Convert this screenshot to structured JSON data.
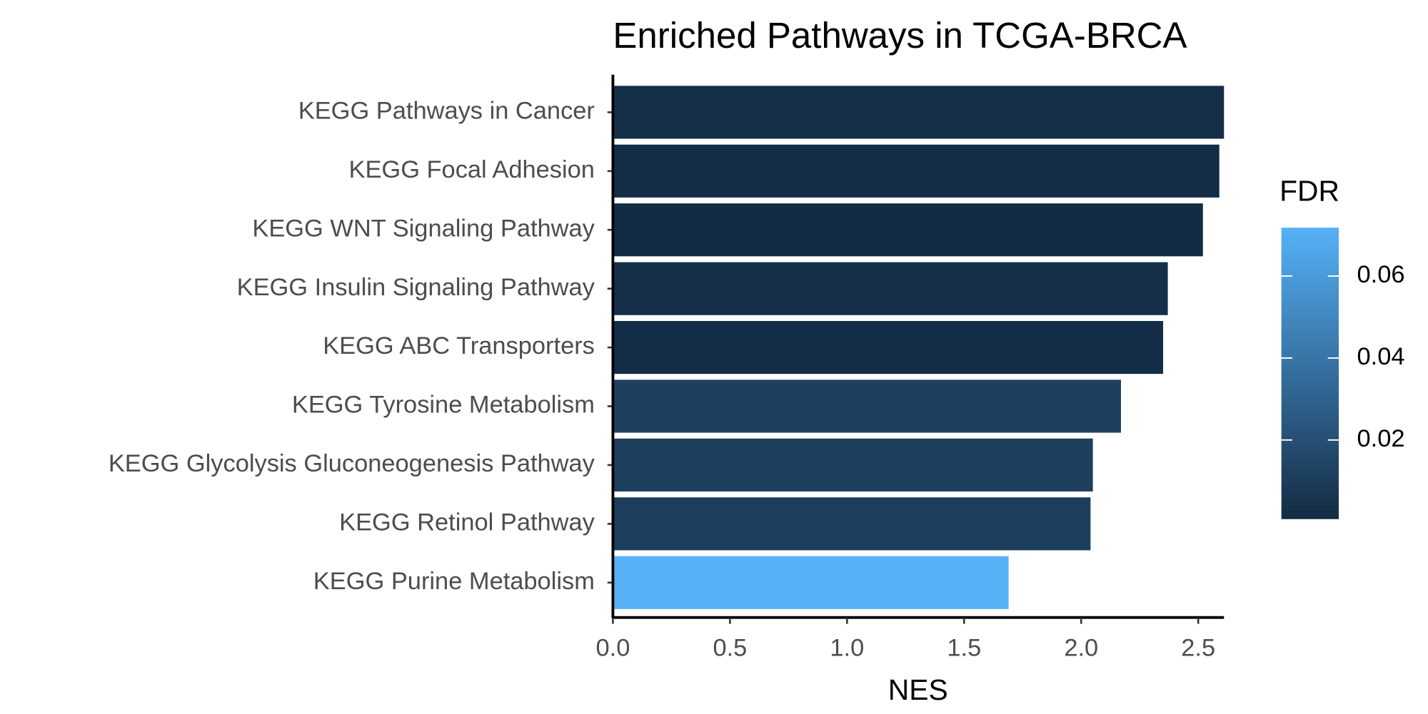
{
  "chart_data": {
    "type": "bar",
    "orientation": "horizontal",
    "title": "Enriched Pathways in TCGA-BRCA",
    "x_label": "NES",
    "categories": [
      "KEGG Pathways in Cancer",
      "KEGG Focal Adhesion",
      "KEGG WNT Signaling Pathway",
      "KEGG Insulin Signaling Pathway",
      "KEGG ABC Transporters",
      "KEGG Tyrosine Metabolism",
      "KEGG Glycolysis Gluconeogenesis Pathway",
      "KEGG Retinol Pathway",
      "KEGG Purine Metabolism"
    ],
    "values": [
      2.61,
      2.59,
      2.52,
      2.37,
      2.35,
      2.17,
      2.05,
      2.04,
      1.69
    ],
    "fdr": [
      0.003,
      0.002,
      0.001,
      0.003,
      0.002,
      0.012,
      0.011,
      0.011,
      0.0718
    ],
    "xlim": [
      0,
      2.61
    ],
    "xticks": [
      {
        "value": 0,
        "label": "0.0"
      },
      0.5,
      {
        "value": 1,
        "label": "1.0"
      },
      1.5,
      {
        "value": 2,
        "label": "2.0"
      },
      2.5
    ],
    "legend_title": "FDR",
    "color_low": "#132B43",
    "color_high": "#56B1F7",
    "clim": [
      0.0007,
      0.0718
    ],
    "cticks": [
      0.02,
      0.04,
      0.06
    ],
    "grid": false
  }
}
